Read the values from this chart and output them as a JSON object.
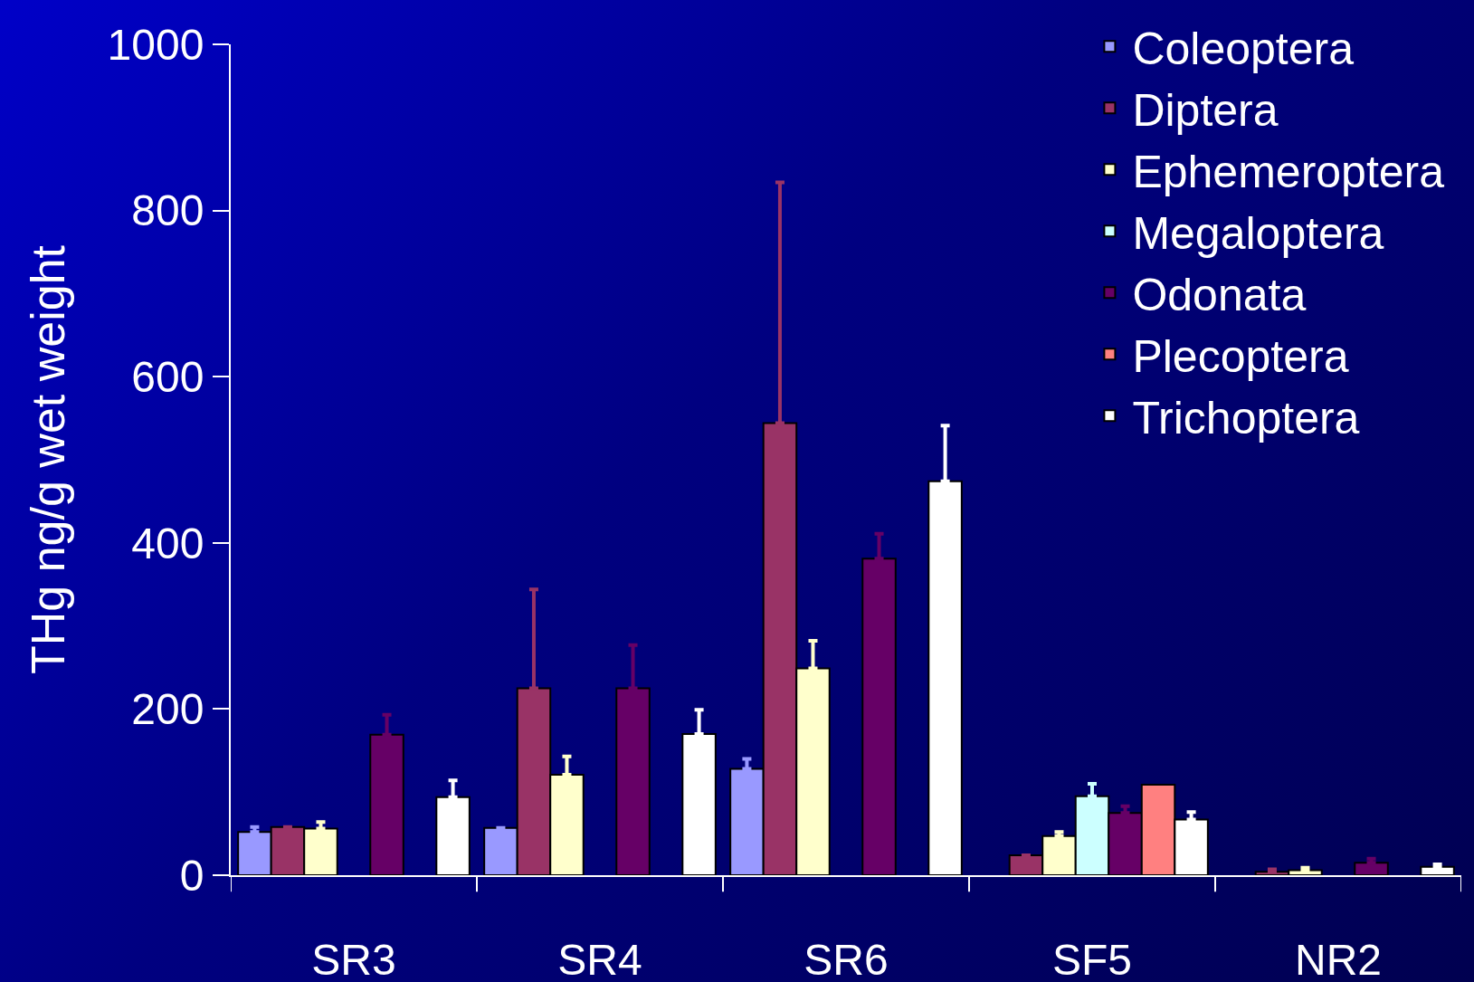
{
  "chart_data": {
    "type": "bar",
    "ylabel": "THg ng/g wet weight",
    "categories": [
      "SR3",
      "SR4",
      "SR6",
      "SF5",
      "NR2"
    ],
    "series": [
      {
        "name": "Coleoptera",
        "color": "#9999ff",
        "values": [
          52,
          57,
          128,
          null,
          null
        ],
        "errors": [
          [
            52,
            58
          ],
          null,
          [
            128,
            140
          ],
          null,
          null
        ]
      },
      {
        "name": "Diptera",
        "color": "#993366",
        "values": [
          58,
          225,
          544,
          24,
          4
        ],
        "errors": [
          null,
          [
            225,
            344
          ],
          [
            544,
            834
          ],
          null,
          [
            4,
            7
          ]
        ]
      },
      {
        "name": "Ephemeroptera",
        "color": "#ffffcc",
        "values": [
          56,
          121,
          249,
          47,
          6
        ],
        "errors": [
          [
            56,
            64
          ],
          [
            121,
            143
          ],
          [
            249,
            282
          ],
          [
            47,
            52
          ],
          [
            6,
            9
          ]
        ]
      },
      {
        "name": "Megaloptera",
        "color": "#ccffff",
        "values": [
          null,
          null,
          null,
          95,
          null
        ],
        "errors": [
          null,
          null,
          null,
          [
            95,
            110
          ],
          null
        ]
      },
      {
        "name": "Odonata",
        "color": "#660066",
        "values": [
          169,
          225,
          381,
          75,
          15
        ],
        "errors": [
          [
            169,
            193
          ],
          [
            225,
            277
          ],
          [
            381,
            411
          ],
          [
            75,
            83
          ],
          [
            15,
            20
          ]
        ]
      },
      {
        "name": "Plecoptera",
        "color": "#ff8080",
        "values": [
          null,
          null,
          null,
          109,
          null
        ]
      },
      {
        "name": "Trichoptera",
        "color": "#ffffff",
        "values": [
          94,
          170,
          474,
          67,
          10
        ],
        "errors": [
          [
            94,
            114
          ],
          [
            170,
            199
          ],
          [
            474,
            541
          ],
          [
            67,
            76
          ],
          [
            10,
            13
          ]
        ]
      }
    ],
    "ylim": [
      0,
      1000
    ],
    "yticks": [
      0,
      200,
      400,
      600,
      800,
      1000
    ],
    "grid": false,
    "legend": "top right"
  }
}
